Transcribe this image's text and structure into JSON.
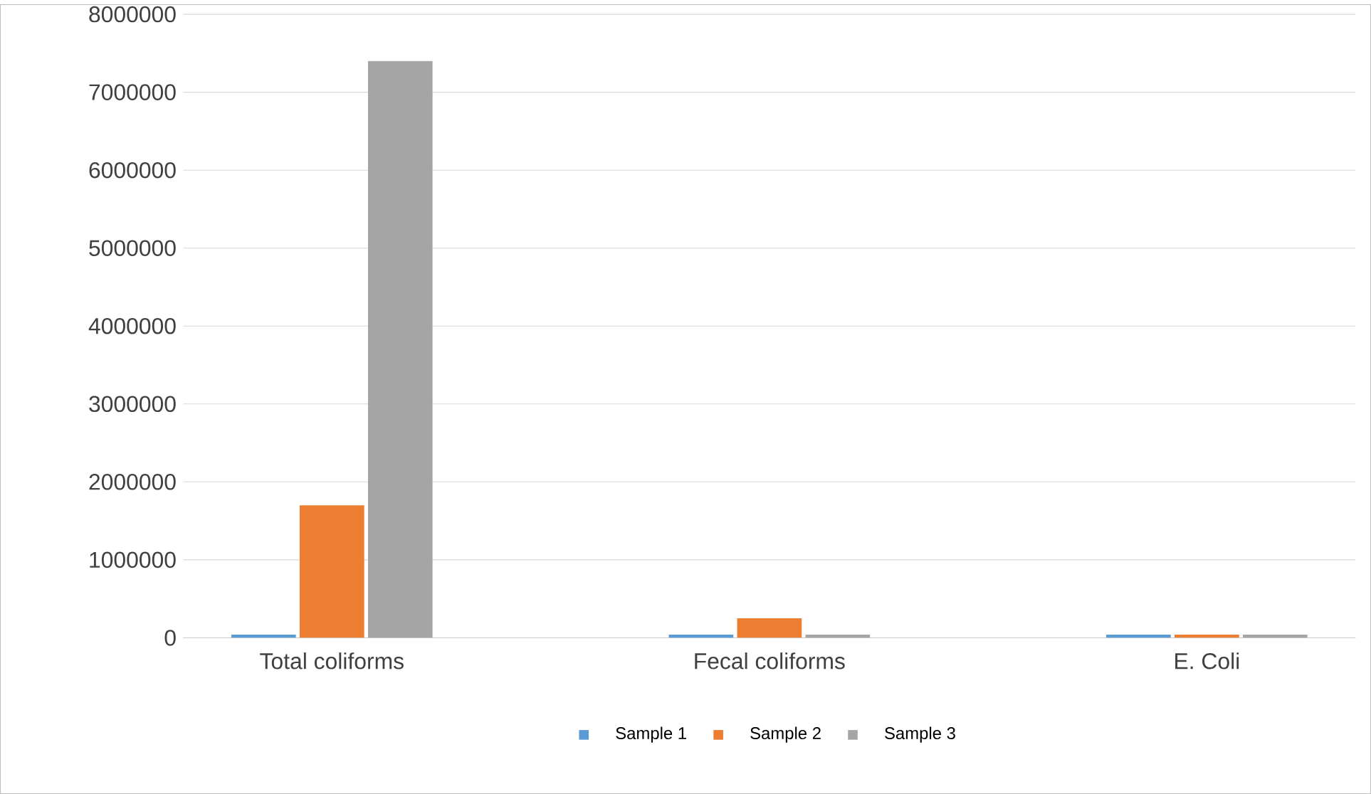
{
  "chart_data": {
    "type": "bar",
    "categories": [
      "Total coliforms",
      "Fecal coliforms",
      "E. Coli"
    ],
    "series": [
      {
        "name": "Sample 1",
        "color": "#5b9bd5",
        "values": [
          40000,
          40000,
          40000
        ]
      },
      {
        "name": "Sample 2",
        "color": "#ed7d31",
        "values": [
          1700000,
          250000,
          40000
        ]
      },
      {
        "name": "Sample 3",
        "color": "#a5a5a5",
        "values": [
          7400000,
          40000,
          40000
        ]
      }
    ],
    "ylim": [
      0,
      8000000
    ],
    "yticks": [
      0,
      1000000,
      2000000,
      3000000,
      4000000,
      5000000,
      6000000,
      7000000,
      8000000
    ],
    "grid": "y",
    "legend": "bottom"
  }
}
